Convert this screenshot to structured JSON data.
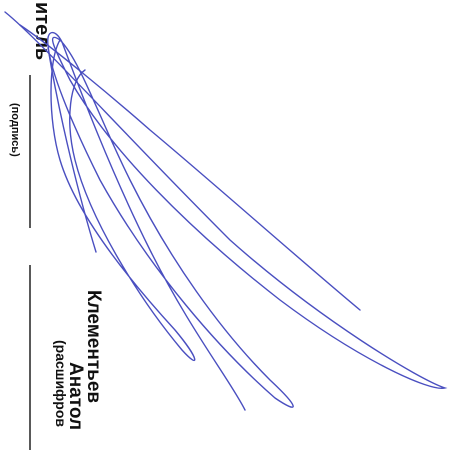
{
  "document": {
    "role": "итель",
    "signature_caption": "(подпись)",
    "name_line1": "Клементьев",
    "name_line2": "Анатол",
    "name_caption": "(расшифров"
  }
}
